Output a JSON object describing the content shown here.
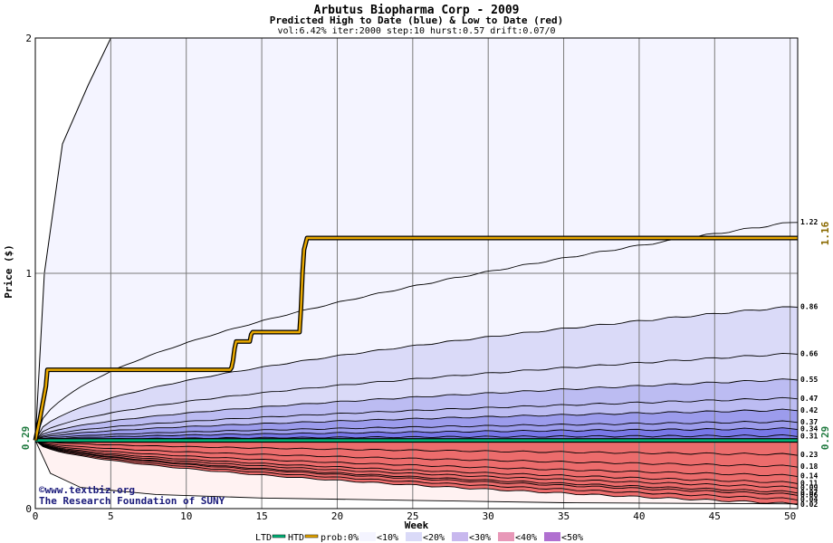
{
  "chart_data": {
    "type": "area",
    "title": "Arbutus Biopharma Corp - 2009",
    "subtitle": "Predicted High to Date (blue) &  Low to Date (red)",
    "params": "vol:6.42% iter:2000 step:10 hurst:0.57 drift:0.07/0",
    "xlabel": "Week",
    "ylabel": "Price ($)",
    "xlim": [
      0,
      50.5
    ],
    "ylim": [
      0,
      2
    ],
    "x_ticks": [
      0,
      5,
      10,
      15,
      20,
      25,
      30,
      35,
      40,
      45,
      50
    ],
    "y_ticks": [
      0,
      1,
      2
    ],
    "grid": true,
    "start_price": 0.29,
    "start_label": "0.29",
    "ltd_value": 0.29,
    "ltd_label": "0.29",
    "htd_final": 1.16,
    "htd_label": "1.16",
    "htd_path": [
      [
        0,
        0.29
      ],
      [
        0.3,
        0.38
      ],
      [
        0.7,
        0.52
      ],
      [
        0.8,
        0.59
      ],
      [
        12.9,
        0.59
      ],
      [
        13,
        0.6
      ],
      [
        13.1,
        0.63
      ],
      [
        13.2,
        0.68
      ],
      [
        13.3,
        0.71
      ],
      [
        14.2,
        0.71
      ],
      [
        14.3,
        0.74
      ],
      [
        14.4,
        0.75
      ],
      [
        17.5,
        0.75
      ],
      [
        17.6,
        0.85
      ],
      [
        17.7,
        1.0
      ],
      [
        17.8,
        1.1
      ],
      [
        18.0,
        1.15
      ],
      [
        50.5,
        1.15
      ]
    ],
    "blue_quantiles": [
      {
        "label": "1.22",
        "final": 1.22
      },
      {
        "label": "0.86",
        "final": 0.86
      },
      {
        "label": "0.66",
        "final": 0.66
      },
      {
        "label": "0.55",
        "final": 0.55
      },
      {
        "label": "0.47",
        "final": 0.47
      },
      {
        "label": "0.42",
        "final": 0.42
      },
      {
        "label": "0.37",
        "final": 0.37
      },
      {
        "label": "0.34",
        "final": 0.34
      },
      {
        "label": "0.31",
        "final": 0.31
      }
    ],
    "red_quantiles": [
      {
        "label": "0.23",
        "final": 0.23
      },
      {
        "label": "0.18",
        "final": 0.18
      },
      {
        "label": "0.14",
        "final": 0.14
      },
      {
        "label": "0.11",
        "final": 0.11
      },
      {
        "label": "0.09",
        "final": 0.09
      },
      {
        "label": "0.07",
        "final": 0.07
      },
      {
        "label": "0.06",
        "final": 0.06
      },
      {
        "label": "0.04",
        "final": 0.04
      },
      {
        "label": "0.02",
        "final": 0.02
      }
    ],
    "legend": {
      "ltd": "LTD",
      "htd": "HTD",
      "prob": "prob:0%",
      "bands": [
        "<10%",
        "<20%",
        "<30%",
        "<40%",
        "<50%"
      ]
    },
    "credit": [
      "©www.textbiz.org",
      "The Research Foundation of SUNY"
    ],
    "colors": {
      "htd_line": "#e8a800",
      "ltd_line": "#00b87a",
      "blue_band_1": "#f4f4ff",
      "blue_band_2": "#dadaf8",
      "blue_band_3": "#bcbcf2",
      "blue_band_4": "#9c9cec",
      "blue_band_5": "#7878e8",
      "red_band_1": "#fff2f2",
      "red_band_2": "#fcd6d6",
      "red_band_3": "#f7b4b4",
      "red_band_4": "#f29090",
      "red_band_5": "#ec6c6c",
      "left_label": "#1f7a3f",
      "right_label": "#8a6a00"
    }
  }
}
